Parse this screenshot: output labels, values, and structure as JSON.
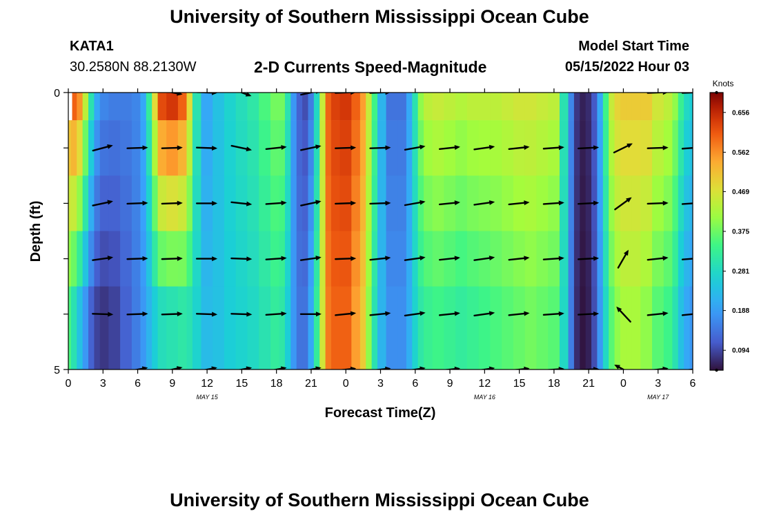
{
  "header": {
    "title": "University of Southern Mississippi Ocean Cube",
    "station_id": "KATA1",
    "station_coords": "30.2580N  88.2130W",
    "subtitle": "2-D Currents Speed-Magnitude",
    "model_start_label": "Model Start Time",
    "model_start_time": "05/15/2022 Hour 03"
  },
  "footer": {
    "title": "University of Southern Mississippi Ocean Cube"
  },
  "chart_data": {
    "type": "heatmap",
    "title": "2-D Currents Speed-Magnitude",
    "xlabel": "Forecast Time(Z)",
    "ylabel": "Depth (ft)",
    "xlim": [
      0,
      54
    ],
    "ylim": [
      0,
      5
    ],
    "x_unit": "hours since May 15 00Z",
    "x_ticks": [
      0,
      3,
      6,
      9,
      12,
      15,
      18,
      21,
      24,
      27,
      30,
      33,
      36,
      39,
      42,
      45,
      48,
      51,
      54
    ],
    "x_tick_labels": [
      "0",
      "3",
      "6",
      "9",
      "12",
      "15",
      "18",
      "21",
      "0",
      "3",
      "6",
      "9",
      "12",
      "15",
      "18",
      "21",
      "0",
      "3",
      "6"
    ],
    "date_labels": [
      {
        "text": "MAY 15",
        "x": 12
      },
      {
        "text": "MAY 16",
        "x": 36
      },
      {
        "text": "MAY 17",
        "x": 51
      }
    ],
    "y_tick_labels": [
      {
        "text": "0",
        "y": 0
      },
      {
        "text": "5",
        "y": 5
      }
    ],
    "y_ticks": [
      0,
      1,
      2,
      3,
      4,
      5
    ],
    "colorbar": {
      "label": "Knots",
      "min": 0.047,
      "max": 0.703,
      "tick_values": [
        0.094,
        0.188,
        0.281,
        0.375,
        0.469,
        0.562,
        0.656
      ],
      "tick_labels": [
        "0.094",
        "0.188",
        "0.281",
        "0.375",
        "0.469",
        "0.562",
        "0.656"
      ]
    },
    "speed_by_hour": {
      "hours": [
        0,
        0.5,
        1,
        1.5,
        2,
        2.5,
        3,
        4,
        5,
        6,
        6.5,
        7,
        7.5,
        8,
        9,
        10,
        10.5,
        11,
        12,
        13,
        14,
        15,
        16,
        17,
        18,
        18.5,
        19,
        19.5,
        20,
        20.5,
        21,
        21.5,
        22,
        22.5,
        23,
        24,
        25,
        25.5,
        26,
        26.5,
        27,
        28,
        29,
        29.5,
        30,
        30.5,
        31,
        32,
        33,
        34,
        35,
        36,
        37,
        38,
        39,
        40,
        41,
        42,
        43,
        43.5,
        44,
        44.5,
        45,
        45.5,
        46,
        46.5,
        47,
        47.5,
        48,
        48.5,
        49,
        50,
        51,
        52,
        52.5,
        53,
        53.5,
        54
      ],
      "surface": [
        0.56,
        0.6,
        0.56,
        0.44,
        0.3,
        0.2,
        0.16,
        0.15,
        0.15,
        0.16,
        0.2,
        0.32,
        0.48,
        0.62,
        0.64,
        0.6,
        0.48,
        0.3,
        0.2,
        0.24,
        0.27,
        0.29,
        0.31,
        0.35,
        0.38,
        0.38,
        0.3,
        0.18,
        0.12,
        0.1,
        0.15,
        0.28,
        0.45,
        0.6,
        0.63,
        0.64,
        0.6,
        0.55,
        0.45,
        0.34,
        0.22,
        0.14,
        0.14,
        0.2,
        0.3,
        0.4,
        0.44,
        0.45,
        0.44,
        0.43,
        0.44,
        0.44,
        0.44,
        0.45,
        0.46,
        0.46,
        0.45,
        0.44,
        0.3,
        0.16,
        0.08,
        0.06,
        0.07,
        0.11,
        0.2,
        0.34,
        0.45,
        0.49,
        0.5,
        0.5,
        0.5,
        0.5,
        0.46,
        0.44,
        0.4,
        0.33,
        0.28,
        0.26
      ],
      "bottom": [
        0.35,
        0.3,
        0.24,
        0.18,
        0.12,
        0.09,
        0.08,
        0.09,
        0.12,
        0.15,
        0.18,
        0.22,
        0.26,
        0.29,
        0.3,
        0.31,
        0.3,
        0.27,
        0.23,
        0.24,
        0.26,
        0.27,
        0.28,
        0.3,
        0.32,
        0.31,
        0.26,
        0.18,
        0.14,
        0.14,
        0.2,
        0.32,
        0.46,
        0.58,
        0.6,
        0.6,
        0.55,
        0.5,
        0.4,
        0.3,
        0.22,
        0.17,
        0.17,
        0.21,
        0.27,
        0.31,
        0.33,
        0.34,
        0.33,
        0.32,
        0.33,
        0.34,
        0.35,
        0.36,
        0.37,
        0.38,
        0.37,
        0.36,
        0.28,
        0.15,
        0.07,
        0.05,
        0.06,
        0.1,
        0.18,
        0.28,
        0.36,
        0.4,
        0.42,
        0.42,
        0.42,
        0.4,
        0.36,
        0.34,
        0.3,
        0.24,
        0.2,
        0.18
      ]
    },
    "missing_cells": [
      {
        "x0": 0,
        "x1": 0.33,
        "y0": 0,
        "y1": 0.5
      }
    ],
    "vector_note": "current direction arrows, angle in degrees counter-clockwise from east, screen orientation",
    "vectors": {
      "times": [
        0,
        3,
        6,
        9,
        12,
        15,
        18,
        21,
        24,
        27,
        30,
        33,
        36,
        39,
        42,
        45,
        48,
        51,
        54
      ],
      "depths": [
        0,
        1,
        2,
        3,
        4,
        5
      ],
      "angle_deg": [
        [
          null,
          null,
          null,
          -10,
          -2,
          -20,
          null,
          12,
          2,
          2,
          null,
          null,
          null,
          null,
          null,
          null,
          null,
          2,
          2
        ],
        [
          null,
          15,
          2,
          2,
          -2,
          -12,
          6,
          12,
          2,
          2,
          10,
          6,
          8,
          6,
          4,
          3,
          26,
          2,
          4
        ],
        [
          null,
          12,
          2,
          2,
          0,
          -6,
          4,
          12,
          2,
          2,
          10,
          6,
          8,
          6,
          4,
          3,
          36,
          2,
          4
        ],
        [
          null,
          8,
          2,
          2,
          0,
          -2,
          4,
          8,
          2,
          6,
          8,
          6,
          8,
          6,
          4,
          3,
          60,
          6,
          4
        ],
        [
          null,
          -2,
          2,
          2,
          -2,
          -2,
          4,
          0,
          6,
          6,
          8,
          6,
          8,
          6,
          4,
          3,
          133,
          6,
          6
        ],
        [
          null,
          null,
          10,
          12,
          10,
          10,
          10,
          10,
          6,
          6,
          8,
          6,
          8,
          6,
          4,
          3,
          152,
          6,
          6
        ]
      ]
    }
  }
}
